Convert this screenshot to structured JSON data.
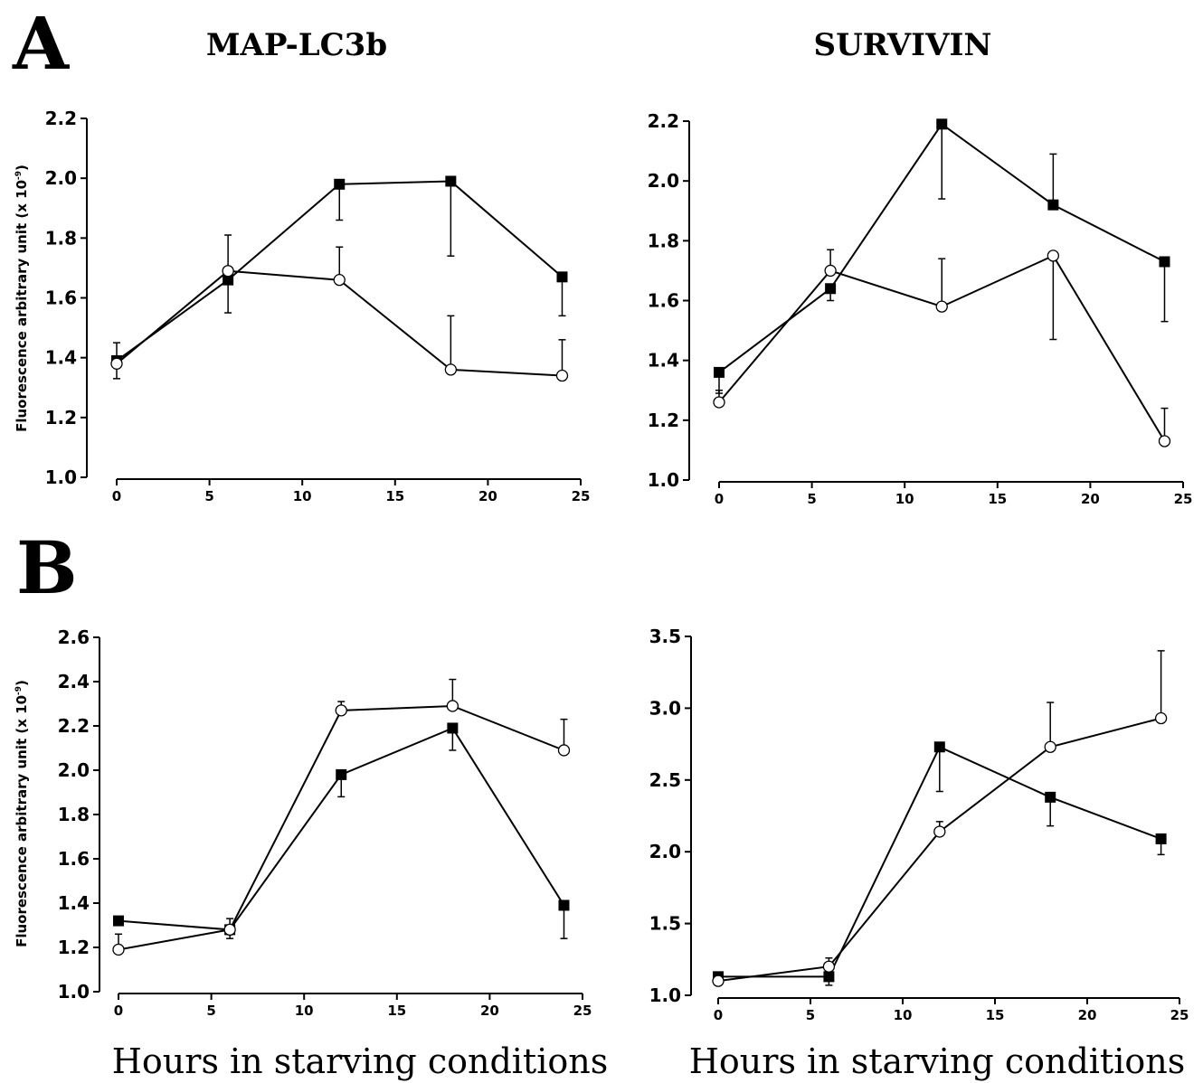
{
  "panels": {
    "a_letter": "A",
    "b_letter": "B",
    "col1_title": "MAP-LC3b",
    "col2_title": "SURVIVIN"
  },
  "labels": {
    "ylabel_main": "Fluorescence arbitrary unit (x 10",
    "ylabel_exp": "-9",
    "ylabel_close": ")",
    "xlabel": "Hours in starving conditions"
  },
  "chart_data": [
    {
      "id": "A1",
      "type": "line",
      "title": "MAP-LC3b",
      "ylabel": "Fluorescence arbitrary unit (x 10-9)",
      "xlim": [
        0,
        25
      ],
      "ylim": [
        1.0,
        2.2
      ],
      "xticks": [
        0,
        5,
        10,
        15,
        20,
        25
      ],
      "yticks": [
        "1.0",
        "1.2",
        "1.4",
        "1.6",
        "1.8",
        "2.0",
        "2.2"
      ],
      "x": [
        0,
        6,
        12,
        18,
        24
      ],
      "series": [
        {
          "marker": "filled-square",
          "values": [
            1.39,
            1.66,
            1.98,
            1.99,
            1.67
          ],
          "err": [
            0.06,
            0.11,
            0.12,
            0.25,
            0.13
          ],
          "err_dir": [
            "down",
            "down",
            "down",
            "down",
            "down"
          ]
        },
        {
          "marker": "open-circle",
          "values": [
            1.38,
            1.69,
            1.66,
            1.36,
            1.34
          ],
          "err": [
            0.07,
            0.12,
            0.11,
            0.18,
            0.12
          ],
          "err_dir": [
            "up",
            "up",
            "up",
            "up",
            "up"
          ]
        }
      ]
    },
    {
      "id": "A2",
      "type": "line",
      "title": "SURVIVIN",
      "xlim": [
        0,
        25
      ],
      "ylim": [
        1.0,
        2.2
      ],
      "xticks": [
        0,
        5,
        10,
        15,
        20,
        25
      ],
      "yticks": [
        "1.0",
        "1.2",
        "1.4",
        "1.6",
        "1.8",
        "2.0",
        "2.2"
      ],
      "x": [
        0,
        6,
        12,
        18,
        24
      ],
      "series": [
        {
          "marker": "filled-square",
          "values": [
            1.36,
            1.64,
            2.19,
            1.92,
            1.73
          ],
          "err": [
            0.07,
            0.04,
            0.25,
            0.17,
            0.2
          ],
          "err_dir": [
            "down",
            "down",
            "down",
            "up",
            "down"
          ]
        },
        {
          "marker": "open-circle",
          "values": [
            1.26,
            1.7,
            1.58,
            1.75,
            1.13
          ],
          "err": [
            0.04,
            0.07,
            0.16,
            0.28,
            0.11
          ],
          "err_dir": [
            "up",
            "up",
            "up",
            "down",
            "up"
          ]
        }
      ]
    },
    {
      "id": "B1",
      "type": "line",
      "ylabel": "Fluorescence arbitrary unit (x 10-9)",
      "xlim": [
        0,
        25
      ],
      "ylim": [
        1.0,
        2.6
      ],
      "xticks": [
        0,
        5,
        10,
        15,
        20,
        25
      ],
      "yticks": [
        "1.0",
        "1.2",
        "1.4",
        "1.6",
        "1.8",
        "2.0",
        "2.2",
        "2.4",
        "2.6"
      ],
      "xlabel": "Hours in starving conditions",
      "x": [
        0,
        6,
        12,
        18,
        24
      ],
      "series": [
        {
          "marker": "filled-square",
          "values": [
            1.32,
            1.28,
            1.98,
            2.19,
            1.39
          ],
          "err": [
            0,
            0.04,
            0.1,
            0.1,
            0.15
          ],
          "err_dir": [
            "down",
            "down",
            "down",
            "down",
            "down"
          ]
        },
        {
          "marker": "open-circle",
          "values": [
            1.19,
            1.28,
            2.27,
            2.29,
            2.09
          ],
          "err": [
            0.07,
            0.05,
            0.04,
            0.12,
            0.14
          ],
          "err_dir": [
            "up",
            "up",
            "up",
            "up",
            "up"
          ]
        }
      ]
    },
    {
      "id": "B2",
      "type": "line",
      "xlim": [
        0,
        25
      ],
      "ylim": [
        1.0,
        3.5
      ],
      "xticks": [
        0,
        5,
        10,
        15,
        20,
        25
      ],
      "yticks": [
        "1.0",
        "1.5",
        "2.0",
        "2.5",
        "3.0",
        "3.5"
      ],
      "xlabel": "Hours in starving conditions",
      "x": [
        0,
        6,
        12,
        18,
        24
      ],
      "series": [
        {
          "marker": "filled-square",
          "values": [
            1.13,
            1.13,
            2.73,
            2.38,
            2.09
          ],
          "err": [
            0,
            0.06,
            0.31,
            0.2,
            0.11
          ],
          "err_dir": [
            "down",
            "down",
            "down",
            "down",
            "down"
          ]
        },
        {
          "marker": "open-circle",
          "values": [
            1.1,
            1.2,
            2.14,
            2.73,
            2.93
          ],
          "err": [
            0.03,
            0.06,
            0.07,
            0.31,
            0.47
          ],
          "err_dir": [
            "up",
            "up",
            "up",
            "up",
            "up"
          ]
        }
      ]
    }
  ]
}
